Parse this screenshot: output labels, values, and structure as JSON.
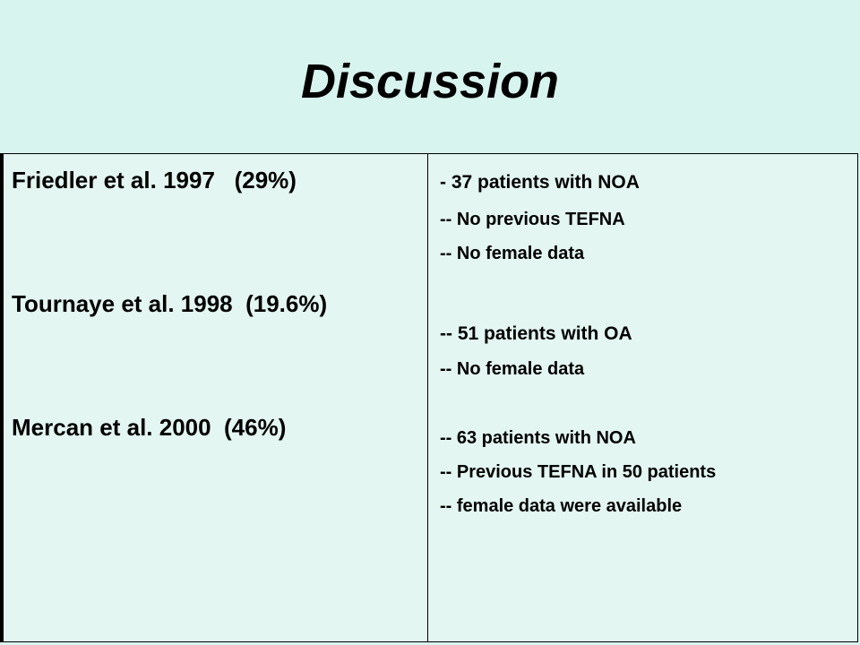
{
  "title": "Discussion",
  "studies": [
    {
      "label": "Friedler et al. 1997   (29%)"
    },
    {
      "label": "Tournaye et al. 1998  (19.6%)"
    },
    {
      "label": "Mercan et al. 2000  (46%)"
    }
  ],
  "details": [
    {
      "text": "- 37 patients with NOA"
    },
    {
      "text": "-- No previous TEFNA"
    },
    {
      "text": "-- No female data"
    },
    {
      "text": "-- 51 patients with OA"
    },
    {
      "text": "-- No female data"
    },
    {
      "text": "-- 63 patients with NOA"
    },
    {
      "text": "-- Previous TEFNA in 50 patients"
    },
    {
      "text": "-- female data were available"
    }
  ]
}
